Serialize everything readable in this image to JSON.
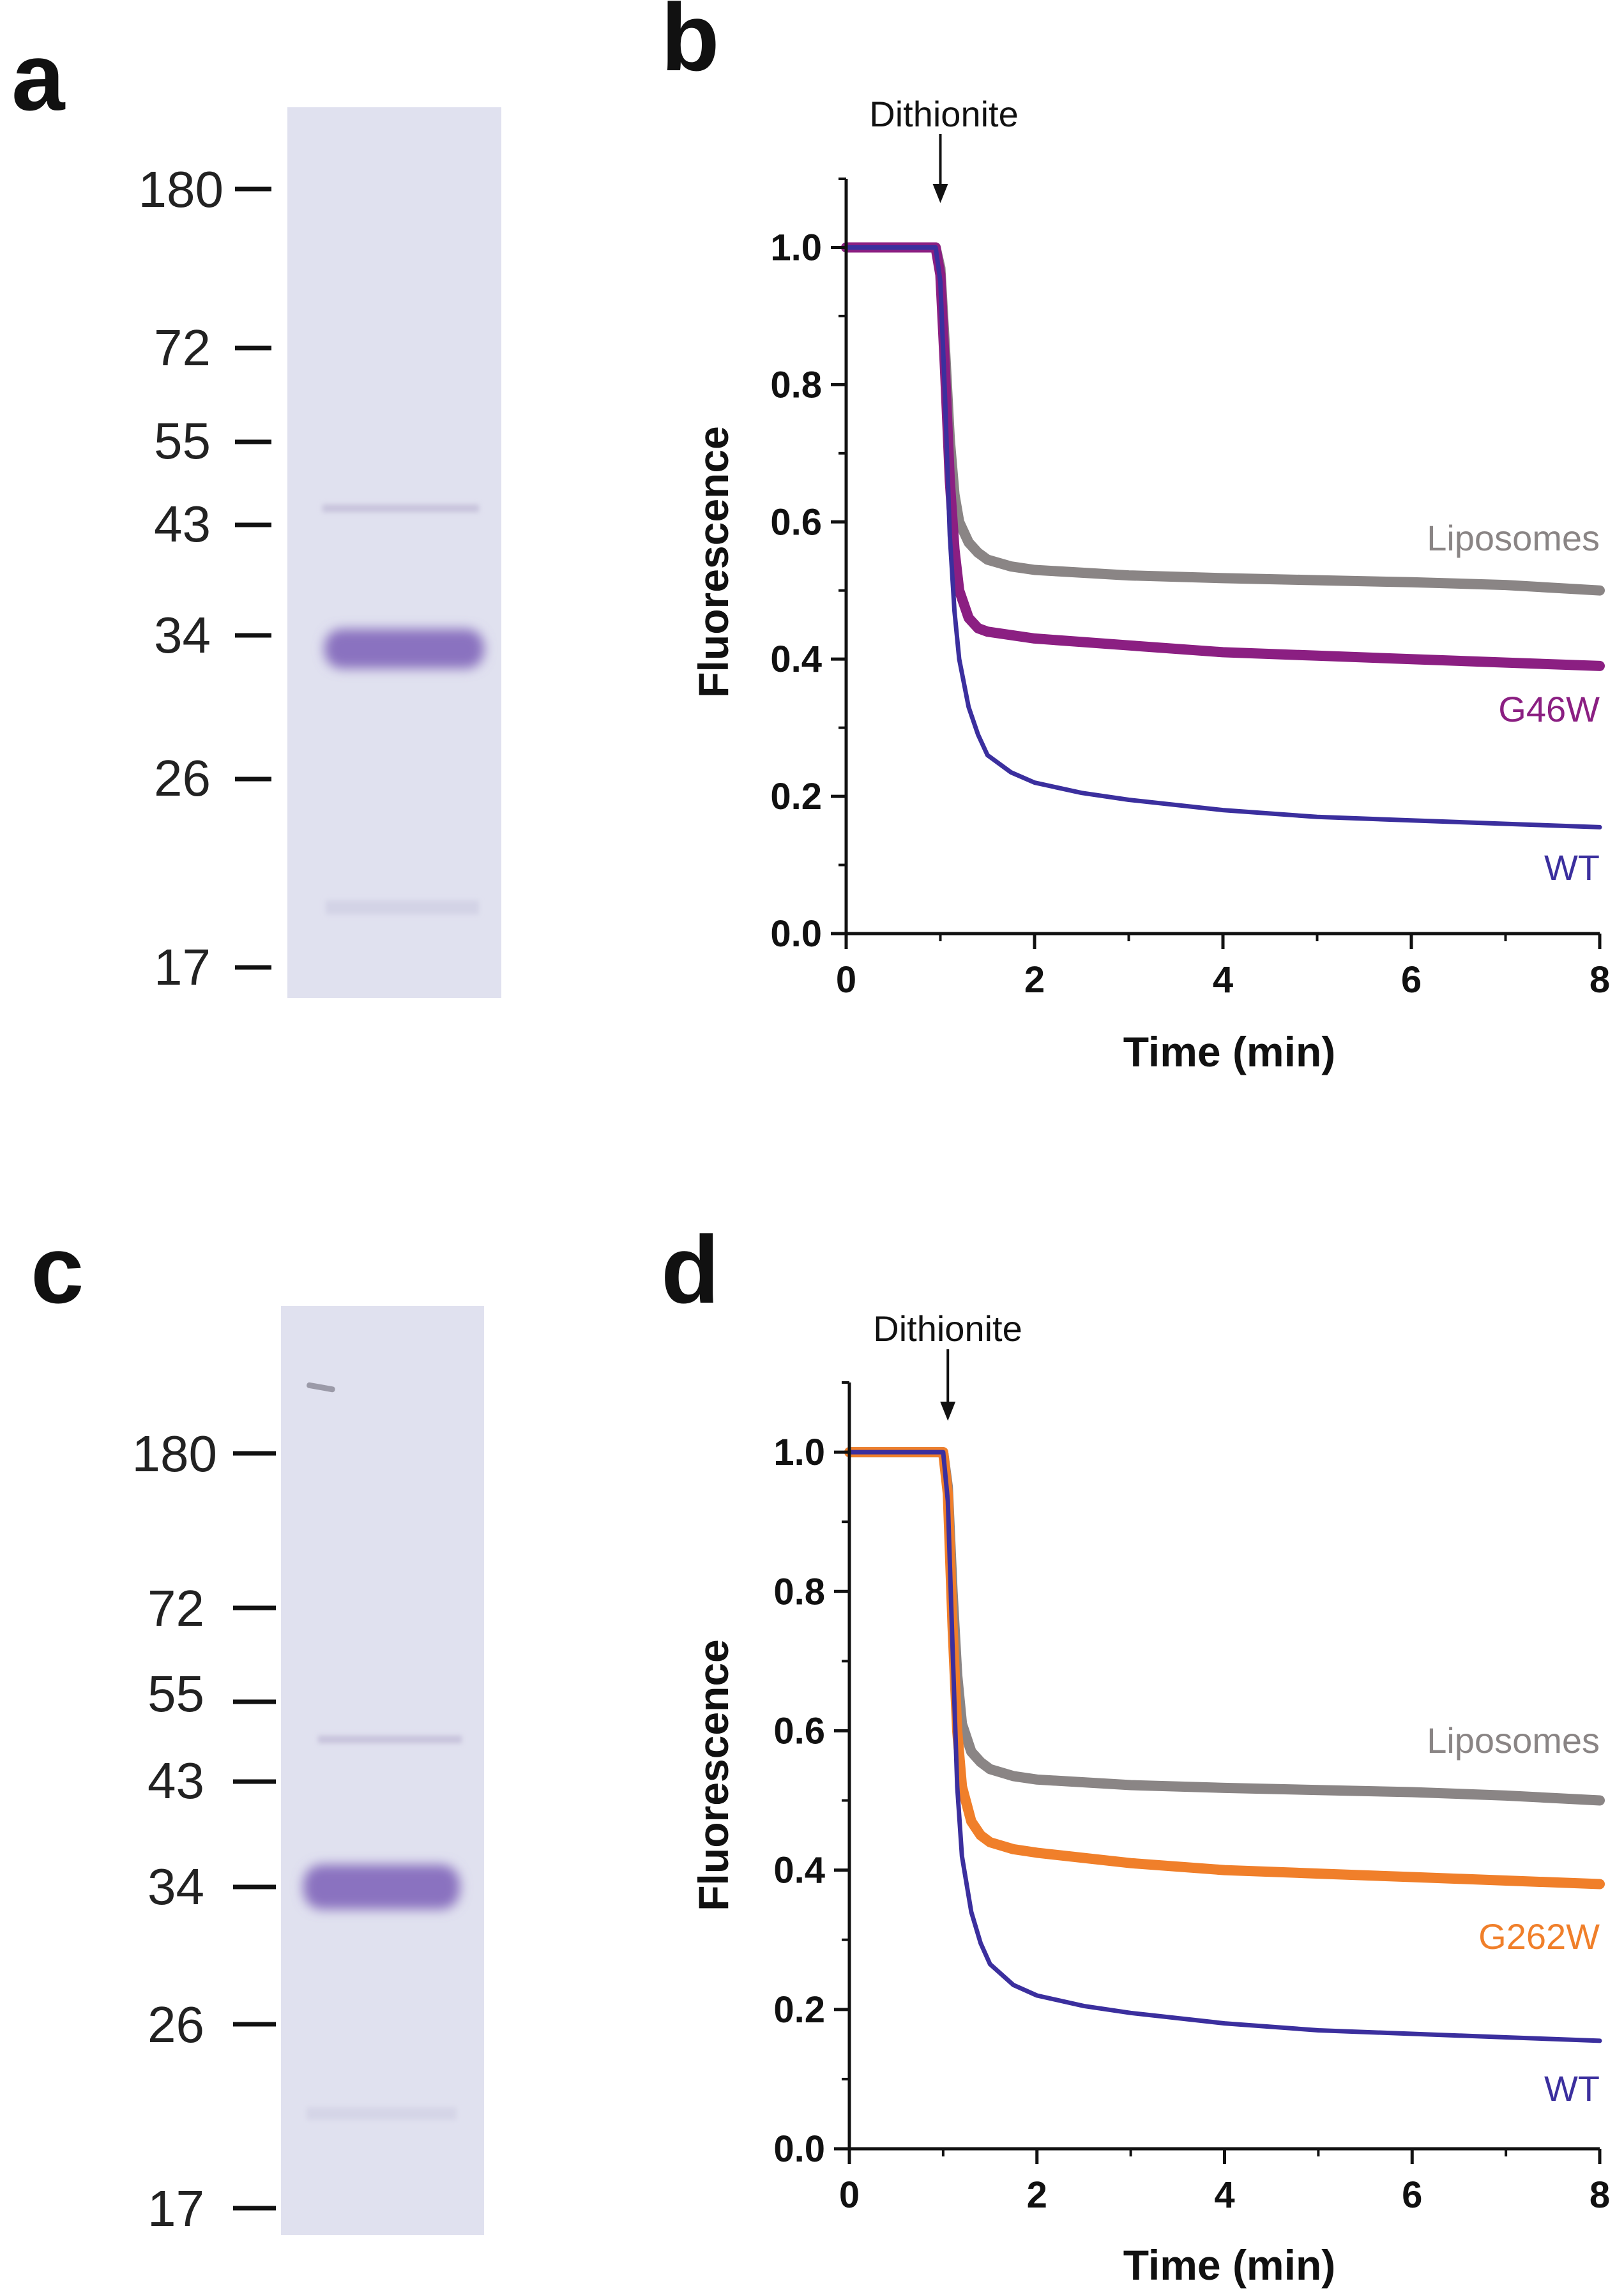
{
  "panels": {
    "a": "a",
    "b": "b",
    "c": "c",
    "d": "d"
  },
  "gels": [
    {
      "panel": "a",
      "markers": [
        "180",
        "72",
        "55",
        "43",
        "34",
        "26",
        "17"
      ],
      "lane_color": "#e0e1ef",
      "band_color": "#8a72c0"
    },
    {
      "panel": "c",
      "markers": [
        "180",
        "72",
        "55",
        "43",
        "34",
        "26",
        "17"
      ],
      "lane_color": "#e0e1ef",
      "band_color": "#8a72c0"
    }
  ],
  "colors": {
    "liposomes": "#8a8585",
    "g46w": "#8b1f82",
    "g262w": "#f07f2a",
    "wt": "#3b2f9e"
  },
  "chart_data": [
    {
      "panel": "b",
      "type": "line",
      "title": "",
      "xlabel": "Time (min)",
      "ylabel": "Fluorescence",
      "xlim": [
        0,
        8
      ],
      "ylim": [
        0,
        1.1
      ],
      "xticks": [
        "0",
        "2",
        "4",
        "6",
        "8"
      ],
      "yticks": [
        "0.0",
        "0.2",
        "0.4",
        "0.6",
        "0.8",
        "1.0"
      ],
      "annotation": {
        "text": "Dithionite",
        "x": 1.0
      },
      "series": [
        {
          "name": "Liposomes",
          "color_key": "liposomes",
          "x": [
            0,
            0.95,
            1.0,
            1.05,
            1.1,
            1.15,
            1.2,
            1.3,
            1.4,
            1.5,
            1.75,
            2,
            3,
            4,
            5,
            6,
            7,
            8
          ],
          "y": [
            1.0,
            1.0,
            0.97,
            0.85,
            0.72,
            0.64,
            0.6,
            0.57,
            0.555,
            0.545,
            0.535,
            0.53,
            0.522,
            0.518,
            0.515,
            0.512,
            0.508,
            0.5
          ]
        },
        {
          "name": "G46W",
          "color_key": "g46w",
          "x": [
            0,
            0.95,
            1.0,
            1.05,
            1.1,
            1.15,
            1.2,
            1.3,
            1.4,
            1.5,
            1.75,
            2,
            3,
            4,
            5,
            6,
            7,
            8
          ],
          "y": [
            1.0,
            1.0,
            0.96,
            0.82,
            0.66,
            0.56,
            0.5,
            0.46,
            0.445,
            0.44,
            0.435,
            0.43,
            0.42,
            0.41,
            0.405,
            0.4,
            0.395,
            0.39
          ]
        },
        {
          "name": "WT",
          "color_key": "wt",
          "x": [
            0,
            0.95,
            1.0,
            1.05,
            1.1,
            1.15,
            1.2,
            1.3,
            1.4,
            1.5,
            1.75,
            2,
            2.5,
            3,
            4,
            5,
            6,
            7,
            8
          ],
          "y": [
            1.0,
            1.0,
            0.95,
            0.78,
            0.58,
            0.47,
            0.4,
            0.33,
            0.29,
            0.26,
            0.235,
            0.22,
            0.205,
            0.195,
            0.18,
            0.17,
            0.165,
            0.16,
            0.155
          ]
        }
      ]
    },
    {
      "panel": "d",
      "type": "line",
      "title": "",
      "xlabel": "Time (min)",
      "ylabel": "Fluorescence",
      "xlim": [
        0,
        8
      ],
      "ylim": [
        0,
        1.1
      ],
      "xticks": [
        "0",
        "2",
        "4",
        "6",
        "8"
      ],
      "yticks": [
        "0.0",
        "0.2",
        "0.4",
        "0.6",
        "0.8",
        "1.0"
      ],
      "annotation": {
        "text": "Dithionite",
        "x": 1.05
      },
      "series": [
        {
          "name": "Liposomes",
          "color_key": "liposomes",
          "x": [
            0,
            1.0,
            1.05,
            1.1,
            1.15,
            1.2,
            1.3,
            1.4,
            1.5,
            1.75,
            2,
            3,
            4,
            5,
            6,
            7,
            8
          ],
          "y": [
            1.0,
            1.0,
            0.95,
            0.8,
            0.68,
            0.61,
            0.57,
            0.555,
            0.545,
            0.535,
            0.53,
            0.522,
            0.518,
            0.515,
            0.512,
            0.507,
            0.5
          ]
        },
        {
          "name": "G262W",
          "color_key": "g262w",
          "x": [
            0,
            1.0,
            1.05,
            1.1,
            1.15,
            1.2,
            1.3,
            1.4,
            1.5,
            1.75,
            2,
            3,
            4,
            5,
            6,
            7,
            8
          ],
          "y": [
            1.0,
            1.0,
            0.94,
            0.75,
            0.6,
            0.52,
            0.47,
            0.45,
            0.44,
            0.43,
            0.425,
            0.41,
            0.4,
            0.395,
            0.39,
            0.385,
            0.38
          ]
        },
        {
          "name": "WT",
          "color_key": "wt",
          "x": [
            0,
            1.0,
            1.05,
            1.1,
            1.15,
            1.2,
            1.3,
            1.4,
            1.5,
            1.75,
            2,
            2.5,
            3,
            4,
            5,
            6,
            7,
            8
          ],
          "y": [
            1.0,
            1.0,
            0.93,
            0.72,
            0.52,
            0.42,
            0.34,
            0.295,
            0.265,
            0.235,
            0.22,
            0.205,
            0.195,
            0.18,
            0.17,
            0.165,
            0.16,
            0.155
          ]
        }
      ]
    }
  ]
}
